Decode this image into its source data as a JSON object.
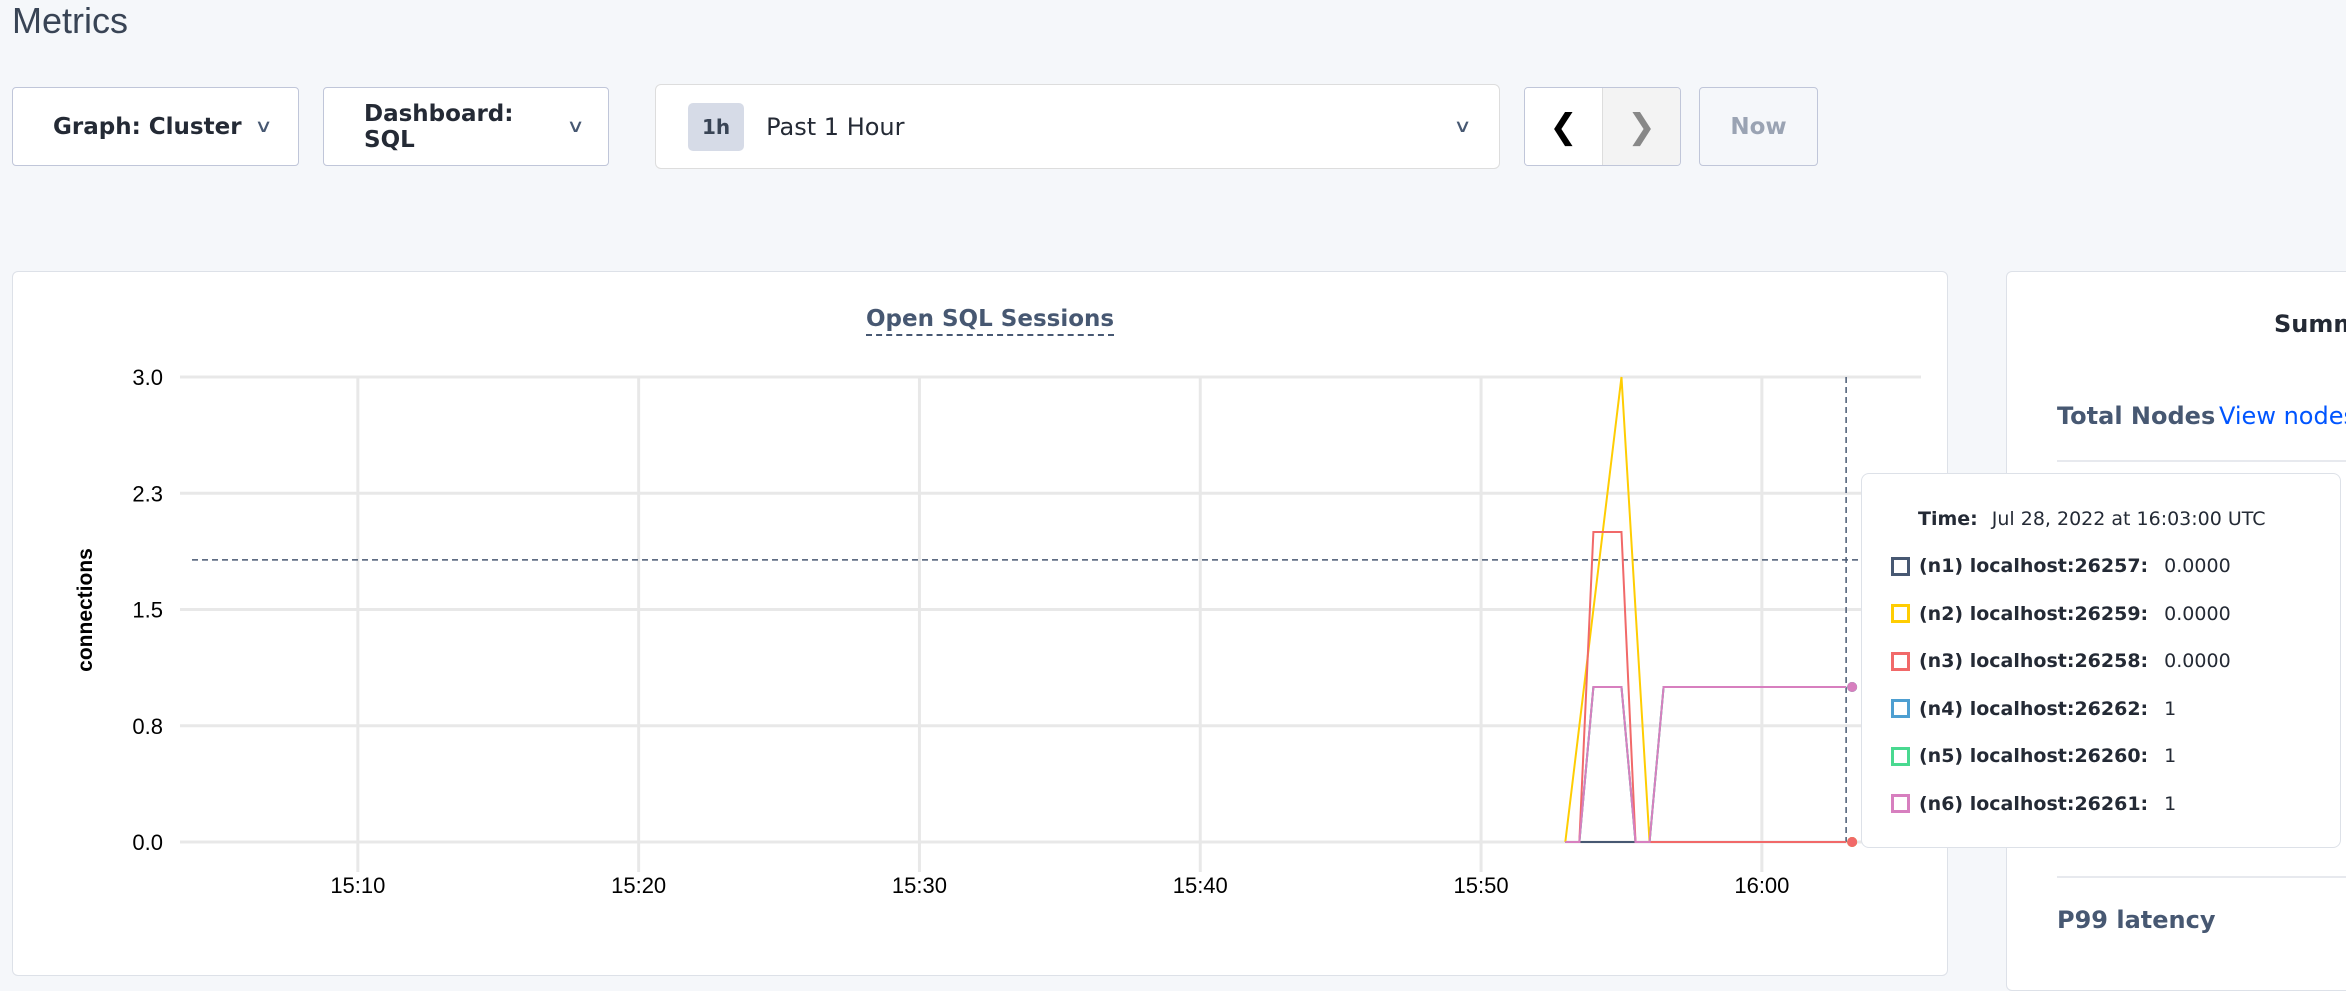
{
  "page": {
    "title": "Metrics"
  },
  "toolbar": {
    "graph_label": "Graph: Cluster",
    "dashboard_label": "Dashboard: SQL",
    "time_badge": "1h",
    "time_label": "Past 1 Hour",
    "prev_icon": "chevron-left-icon",
    "next_icon": "chevron-right-icon",
    "now_label": "Now"
  },
  "chart_data": {
    "type": "line",
    "title": "Open SQL Sessions",
    "ylabel": "connections",
    "xlabel": "",
    "ylim": [
      0,
      3.0
    ],
    "y_ticks": [
      "0.0",
      "0.8",
      "1.5",
      "2.3",
      "3.0"
    ],
    "y_tick_values": [
      0,
      0.75,
      1.5,
      2.25,
      3.0
    ],
    "xlim": [
      "15:03:40",
      "16:05:40"
    ],
    "x_ticks": [
      "15:10",
      "15:20",
      "15:30",
      "15:40",
      "15:50",
      "16:00"
    ],
    "grid": true,
    "hover_time": "16:03",
    "series": [
      {
        "name": "(n1) localhost:26257",
        "color": "#475872",
        "points": [
          [
            "15:53",
            0
          ],
          [
            "16:03",
            0
          ]
        ]
      },
      {
        "name": "(n4) localhost:26262",
        "color": "#4e9fd1",
        "points": [
          [
            "15:53",
            0
          ],
          [
            "15:53:30",
            0
          ],
          [
            "15:54",
            1
          ],
          [
            "15:55",
            1
          ],
          [
            "15:55:30",
            0
          ],
          [
            "15:56",
            0
          ],
          [
            "15:56:30",
            1
          ],
          [
            "16:03",
            1
          ]
        ]
      },
      {
        "name": "(n5) localhost:26260",
        "color": "#49d990",
        "points": [
          [
            "15:53",
            0
          ],
          [
            "15:53:30",
            0
          ],
          [
            "15:54",
            1
          ],
          [
            "15:55",
            1
          ],
          [
            "15:55:30",
            0
          ],
          [
            "15:56",
            0
          ],
          [
            "15:56:30",
            1
          ],
          [
            "16:03",
            1
          ]
        ]
      },
      {
        "name": "(n2) localhost:26259",
        "color": "#ffcd02",
        "points": [
          [
            "15:53",
            0
          ],
          [
            "15:55",
            3
          ],
          [
            "15:56",
            0
          ],
          [
            "16:03",
            0
          ]
        ]
      },
      {
        "name": "(n3) localhost:26258",
        "color": "#f16969",
        "points": [
          [
            "15:53",
            0
          ],
          [
            "15:53:30",
            0
          ],
          [
            "15:54",
            2
          ],
          [
            "15:55",
            2
          ],
          [
            "15:55:30",
            0
          ],
          [
            "16:03",
            0
          ]
        ]
      },
      {
        "name": "(n6) localhost:26261",
        "color": "#d77fbf",
        "points": [
          [
            "15:53",
            0
          ],
          [
            "15:53:30",
            0
          ],
          [
            "15:54",
            1
          ],
          [
            "15:55",
            1
          ],
          [
            "15:55:30",
            0
          ],
          [
            "15:56",
            0
          ],
          [
            "15:56:30",
            1
          ],
          [
            "16:03",
            1
          ]
        ]
      }
    ]
  },
  "tooltip": {
    "time_label": "Time:",
    "time_value": "Jul 28, 2022 at 16:03:00 UTC",
    "rows": [
      {
        "label": "(n1) localhost:26257:",
        "value": "0.0000",
        "color": "#475872"
      },
      {
        "label": "(n2) localhost:26259:",
        "value": "0.0000",
        "color": "#ffcd02"
      },
      {
        "label": "(n3) localhost:26258:",
        "value": "0.0000",
        "color": "#f16969"
      },
      {
        "label": "(n4) localhost:26262:",
        "value": "1",
        "color": "#4e9fd1"
      },
      {
        "label": "(n5) localhost:26260:",
        "value": "1",
        "color": "#49d990"
      },
      {
        "label": "(n6) localhost:26261:",
        "value": "1",
        "color": "#d77fbf"
      }
    ]
  },
  "summary": {
    "title": "Summ",
    "total_nodes_label": "Total Nodes",
    "view_nodes_link": "View nodes",
    "p99_label": "P99 latency"
  }
}
